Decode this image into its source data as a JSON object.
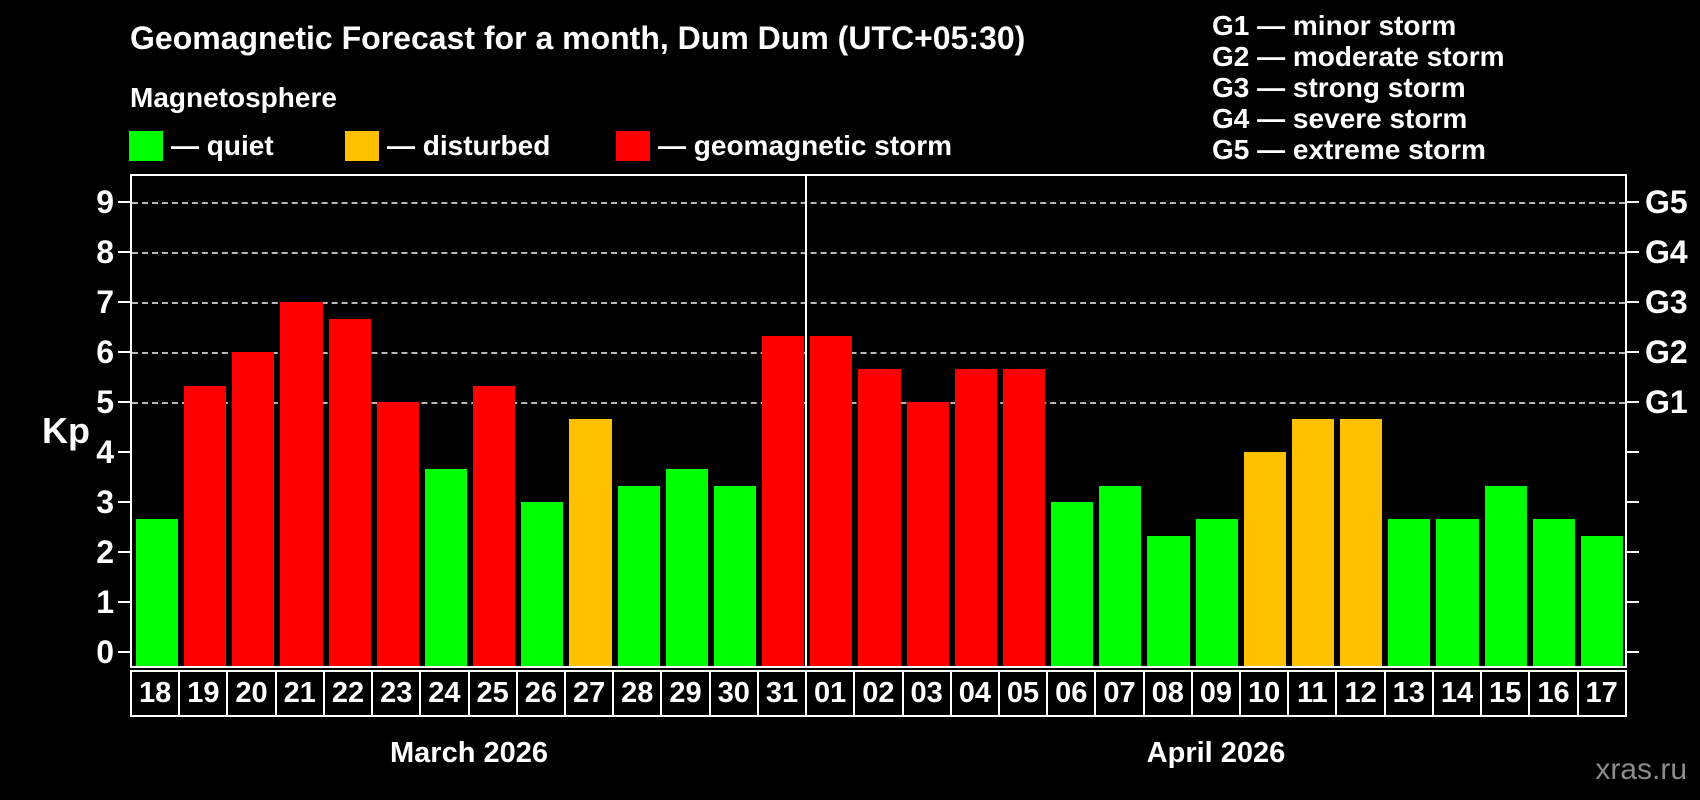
{
  "header": {
    "title": "Geomagnetic Forecast for a month, Dum Dum (UTC+05:30)",
    "subtitle": "Magnetosphere"
  },
  "series_legend": [
    {
      "name": "quiet",
      "label": "— quiet",
      "color": "#00ff00"
    },
    {
      "name": "disturbed",
      "label": "— disturbed",
      "color": "#ffc000"
    },
    {
      "name": "storm",
      "label": "— geomagnetic storm",
      "color": "#ff0000"
    }
  ],
  "storm_scale_legend": [
    "G1 — minor storm",
    "G2 — moderate storm",
    "G3 — strong storm",
    "G4 — severe storm",
    "G5 — extreme storm"
  ],
  "watermark": "xras.ru",
  "chart_data": {
    "type": "bar",
    "ylabel": "Kp",
    "ylim": [
      0,
      9
    ],
    "yticks": [
      0,
      1,
      2,
      3,
      4,
      5,
      6,
      7,
      8,
      9
    ],
    "right_axis": {
      "labels": [
        "G1",
        "G2",
        "G3",
        "G4",
        "G5"
      ],
      "at_kp": [
        5,
        6,
        7,
        8,
        9
      ]
    },
    "grid": {
      "style": "dashed horizontal",
      "at_kp": [
        5,
        6,
        7,
        8,
        9
      ]
    },
    "month_sections": [
      {
        "label": "March 2026",
        "days": 14
      },
      {
        "label": "April 2026",
        "days": 17
      }
    ],
    "categories": [
      "18",
      "19",
      "20",
      "21",
      "22",
      "23",
      "24",
      "25",
      "26",
      "27",
      "28",
      "29",
      "30",
      "31",
      "01",
      "02",
      "03",
      "04",
      "05",
      "06",
      "07",
      "08",
      "09",
      "10",
      "11",
      "12",
      "13",
      "14",
      "15",
      "16",
      "17"
    ],
    "values": [
      2.67,
      5.33,
      6,
      7,
      6.67,
      5,
      3.67,
      5.33,
      3,
      4.67,
      3.33,
      3.67,
      3.33,
      6.33,
      6.33,
      5.67,
      5,
      5.67,
      5.67,
      3,
      3.33,
      2.33,
      2.67,
      4,
      4.67,
      4.67,
      2.67,
      2.67,
      3.33,
      2.67,
      2.33
    ],
    "statuses": [
      "quiet",
      "storm",
      "storm",
      "storm",
      "storm",
      "storm",
      "quiet",
      "storm",
      "quiet",
      "disturbed",
      "quiet",
      "quiet",
      "quiet",
      "storm",
      "storm",
      "storm",
      "storm",
      "storm",
      "storm",
      "quiet",
      "quiet",
      "quiet",
      "quiet",
      "disturbed",
      "disturbed",
      "disturbed",
      "quiet",
      "quiet",
      "quiet",
      "quiet",
      "quiet"
    ],
    "status_colors": {
      "quiet": "#00ff00",
      "disturbed": "#ffc000",
      "storm": "#ff0000"
    }
  }
}
